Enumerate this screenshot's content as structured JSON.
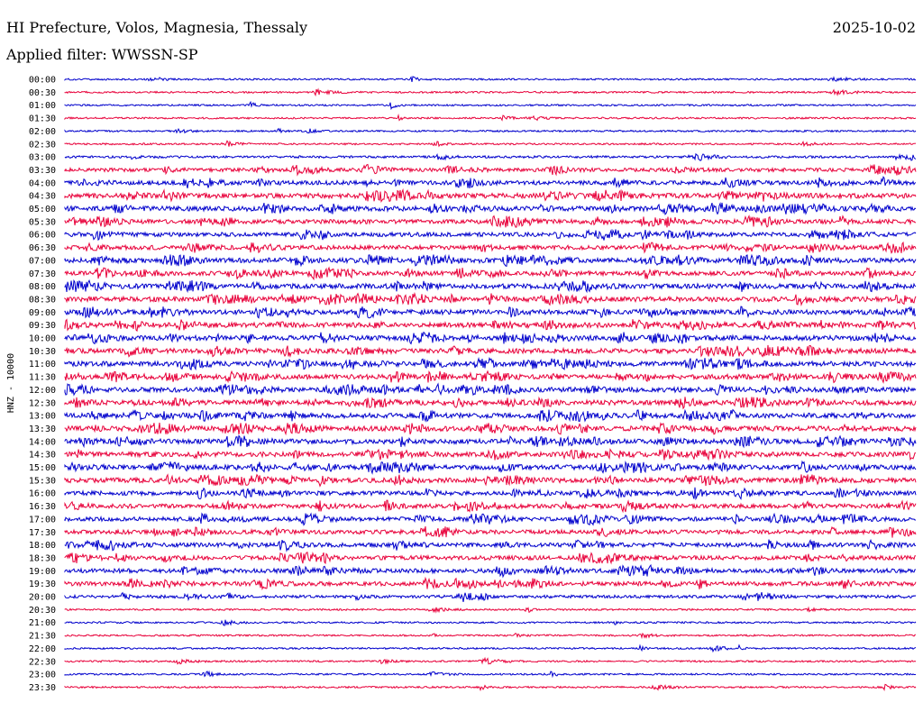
{
  "header": {
    "station": "HI Prefecture, Volos, Magnesia, Thessaly",
    "date": "2025-10-02",
    "filter_prefix": "Applied filter:",
    "filter_name": "WWSSN-SP"
  },
  "chart_data": {
    "type": "line",
    "ylabel": "HNZ - 10000",
    "row_labels": [
      "00:00",
      "00:30",
      "01:00",
      "01:30",
      "02:00",
      "02:30",
      "03:00",
      "03:30",
      "04:00",
      "04:30",
      "05:00",
      "05:30",
      "06:00",
      "06:30",
      "07:00",
      "07:30",
      "08:00",
      "08:30",
      "09:00",
      "09:30",
      "10:00",
      "10:30",
      "11:00",
      "11:30",
      "12:00",
      "12:30",
      "13:00",
      "13:30",
      "14:00",
      "14:30",
      "15:00",
      "15:30",
      "16:00",
      "16:30",
      "17:00",
      "17:30",
      "18:00",
      "18:30",
      "19:00",
      "19:30",
      "20:00",
      "20:30",
      "21:00",
      "21:30",
      "22:00",
      "22:30",
      "23:00",
      "23:30"
    ],
    "colors": [
      "#0000cc",
      "#e8003a"
    ],
    "activity": [
      1,
      1,
      1,
      1,
      1,
      1,
      2,
      4,
      5,
      6,
      6,
      5,
      5,
      5,
      6,
      5,
      6,
      6,
      6,
      6,
      6,
      6,
      6,
      6,
      6,
      6,
      6,
      6,
      6,
      6,
      6,
      6,
      5,
      5,
      5,
      5,
      5,
      5,
      5,
      5,
      3,
      1,
      1,
      1,
      1,
      1,
      1,
      1
    ]
  }
}
